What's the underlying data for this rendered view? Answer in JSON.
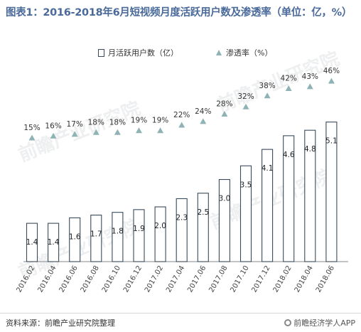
{
  "title": "图表1：2016-2018年6月短视频月度活跃用户数及渗透率（单位：亿，%）",
  "source": "资料来源：前瞻产业研究院整理",
  "brand": "前瞻经济学人APP",
  "watermark": "前瞻产业研究院",
  "colors": {
    "bar_stroke": "#3a4a5a",
    "marker": "#8fb3b5",
    "title": "#4a6a9a"
  },
  "chart_data": {
    "type": "bar",
    "categories": [
      "2016.02",
      "2016.04",
      "2016.06",
      "2016.08",
      "2016.10",
      "2016.12",
      "2017.02",
      "2017.04",
      "2017.06",
      "2017.08",
      "2017.10",
      "2017.12",
      "2018.02",
      "2018.04",
      "2018.06"
    ],
    "series": [
      {
        "name": "月活跃用户数（亿）",
        "type": "bar",
        "values": [
          1.4,
          1.4,
          1.6,
          1.7,
          1.8,
          1.9,
          2.0,
          2.3,
          2.5,
          3.0,
          3.5,
          4.1,
          4.6,
          4.8,
          5.1
        ]
      },
      {
        "name": "渗透率（%）",
        "type": "scatter",
        "marker": "triangle",
        "values": [
          15,
          16,
          17,
          18,
          18,
          19,
          19,
          22,
          24,
          28,
          32,
          38,
          42,
          43,
          46
        ],
        "label_suffix": "%"
      }
    ],
    "legend_position": "top",
    "grid": false
  }
}
